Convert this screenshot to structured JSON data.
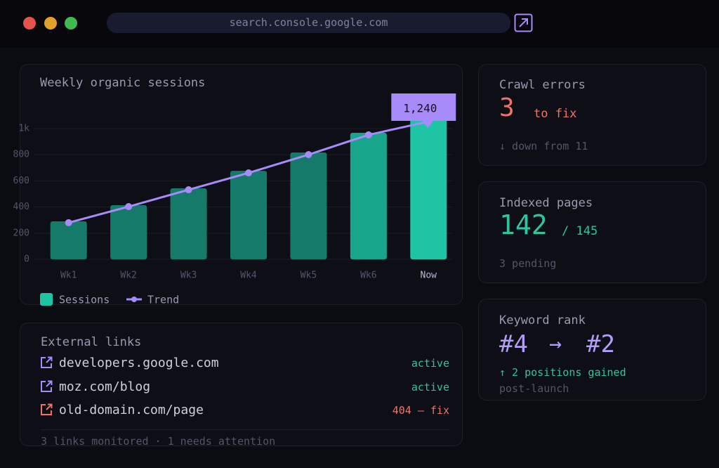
{
  "browser": {
    "url": "search.console.google.com"
  },
  "chart_data": {
    "type": "bar",
    "title": "Weekly organic sessions",
    "categories": [
      "Wk1",
      "Wk2",
      "Wk3",
      "Wk4",
      "Wk5",
      "Wk6",
      "Now"
    ],
    "series": [
      {
        "name": "Sessions",
        "color": "#1ec4a4",
        "colors": [
          "#157a69",
          "#157a69",
          "#157a69",
          "#157a69",
          "#157a69",
          "#17a68c",
          "#1ec4a4"
        ],
        "values": [
          290,
          414,
          543,
          677,
          817,
          968,
          1240
        ],
        "value_labels": [
          null,
          null,
          null,
          null,
          null,
          null,
          "1,240"
        ]
      },
      {
        "name": "Trend",
        "type": "line",
        "color": "#a78bfa",
        "values": [
          280,
          403,
          532,
          661,
          801,
          952,
          1054
        ]
      }
    ],
    "ylim": [
      0,
      1000
    ],
    "yticks": [
      0,
      200,
      400,
      600,
      800,
      {
        "value": 1000,
        "label": "1k"
      }
    ],
    "grid": true
  },
  "links": {
    "title": "External links",
    "rows": [
      {
        "url": "developers.google.com",
        "status": "active",
        "color": "#2ec4a0",
        "icon_color": "#a78bfa"
      },
      {
        "url": "moz.com/blog",
        "status": "active",
        "color": "#2ec4a0",
        "icon_color": "#a78bfa"
      },
      {
        "url": "old-domain.com/page",
        "status": "404 — fix",
        "color": "#f0736a",
        "icon_color": "#f0736a"
      }
    ],
    "footer": "3 links monitored · 1 needs attention"
  },
  "crawl": {
    "title": "Crawl errors",
    "value": "3",
    "unit": "to fix",
    "note": "↓ down from 11"
  },
  "indexed": {
    "title": "Indexed pages",
    "value": "142",
    "total": "/ 145",
    "note": "3 pending"
  },
  "keyword": {
    "title": "Keyword rank",
    "from": "#4",
    "arrow": "→",
    "to": "#2",
    "change": "↑ 2 positions gained",
    "note": "post-launch"
  }
}
